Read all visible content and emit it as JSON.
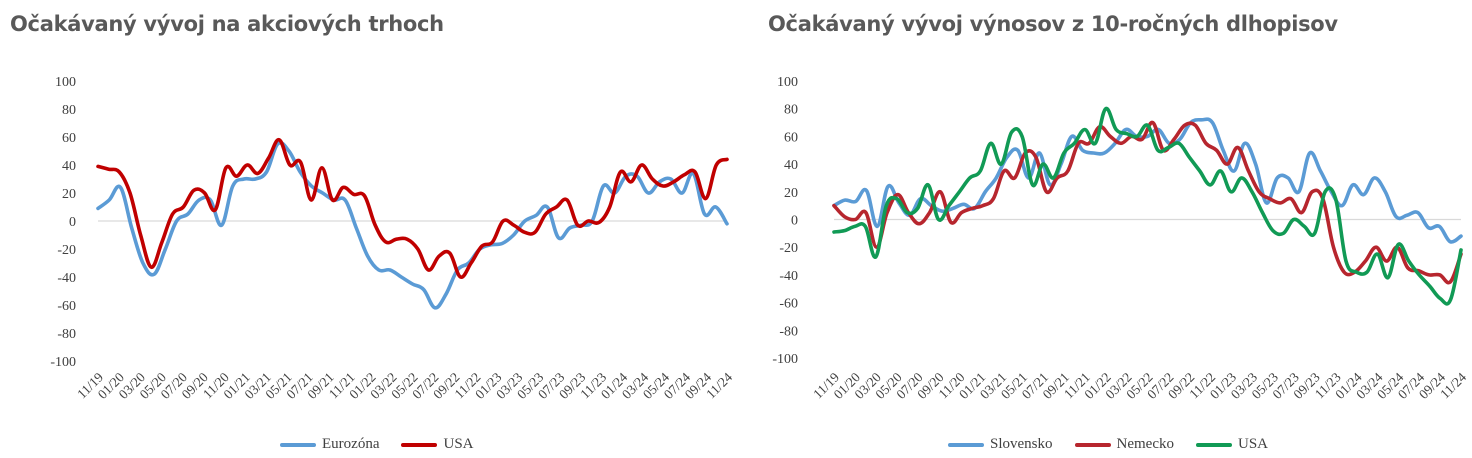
{
  "colors": {
    "eurozona": "#5b9bd5",
    "usa_red": "#c00000",
    "slovensko": "#5b9bd5",
    "nemecko": "#b7262e",
    "usa_green": "#119a55",
    "axis": "#d9d9d9",
    "text": "#404040"
  },
  "chart_data": [
    {
      "type": "line",
      "title": "Očakávaný vývoj na akciových trhoch",
      "ylim": [
        -100,
        100
      ],
      "yticks": [
        "100",
        "80",
        "60",
        "40",
        "20",
        "0",
        "-20",
        "-40",
        "-60",
        "-80",
        "-100"
      ],
      "xticks": [
        "11/19",
        "01/20",
        "03/20",
        "05/20",
        "07/20",
        "09/20",
        "11/20",
        "01/21",
        "03/21",
        "05/21",
        "07/21",
        "09/21",
        "11/21",
        "01/22",
        "03/22",
        "05/22",
        "07/22",
        "09/22",
        "11/22",
        "01/23",
        "03/23",
        "05/23",
        "07/23",
        "09/23",
        "11/23",
        "01/24",
        "03/24",
        "05/24",
        "07/24",
        "09/24",
        "11/24"
      ],
      "legend": "bottom",
      "series": [
        {
          "name": "Eurozóna",
          "values": [
            9,
            15,
            24,
            -5,
            -30,
            -38,
            -20,
            0,
            5,
            15,
            15,
            -3,
            25,
            30,
            30,
            35,
            55,
            50,
            35,
            25,
            20,
            15,
            15,
            -5,
            -25,
            -35,
            -35,
            -40,
            -45,
            -49,
            -62,
            -52,
            -35,
            -30,
            -20,
            -17,
            -16,
            -10,
            0,
            4,
            10,
            -12,
            -5,
            -3,
            0,
            25,
            20,
            32,
            32,
            20,
            28,
            30,
            20,
            34,
            5,
            10,
            -2
          ]
        },
        {
          "name": "USA",
          "values": [
            39,
            37,
            35,
            20,
            -10,
            -33,
            -15,
            5,
            10,
            22,
            20,
            8,
            38,
            32,
            40,
            34,
            45,
            58,
            40,
            42,
            15,
            38,
            15,
            24,
            19,
            18,
            -3,
            -15,
            -13,
            -13,
            -20,
            -35,
            -25,
            -23,
            -40,
            -30,
            -18,
            -15,
            0,
            -3,
            -8,
            -8,
            5,
            10,
            15,
            -3,
            0,
            -1,
            10,
            35,
            28,
            40,
            30,
            25,
            28,
            33,
            35,
            16,
            40,
            44
          ]
        }
      ]
    },
    {
      "type": "line",
      "title": "Očakávaný vývoj výnosov z 10-ročných dlhopisov",
      "ylim": [
        -100,
        100
      ],
      "yticks": [
        "100",
        "80",
        "60",
        "40",
        "20",
        "0",
        "-20",
        "-40",
        "-60",
        "-80",
        "-100"
      ],
      "xticks": [
        "11/19",
        "01/20",
        "03/20",
        "05/20",
        "07/20",
        "09/20",
        "11/20",
        "01/21",
        "03/21",
        "05/21",
        "07/21",
        "09/21",
        "11/21",
        "01/22",
        "03/22",
        "05/22",
        "07/22",
        "09/22",
        "11/22",
        "01/23",
        "03/23",
        "05/23",
        "07/23",
        "09/23",
        "11/23",
        "01/24",
        "03/24",
        "05/24",
        "07/24",
        "09/24",
        "11/24"
      ],
      "legend": "bottom",
      "series": [
        {
          "name": "Slovensko",
          "values": [
            10,
            14,
            13,
            21,
            -5,
            24,
            12,
            3,
            15,
            10,
            6,
            8,
            11,
            8,
            20,
            30,
            45,
            50,
            30,
            48,
            25,
            40,
            60,
            50,
            48,
            48,
            55,
            65,
            60,
            60,
            65,
            55,
            58,
            70,
            72,
            70,
            50,
            35,
            55,
            40,
            12,
            30,
            30,
            20,
            48,
            35,
            20,
            10,
            25,
            18,
            30,
            20,
            2,
            3,
            5,
            -6,
            -5,
            -16,
            -12
          ]
        },
        {
          "name": "Nemecko",
          "values": [
            10,
            2,
            0,
            5,
            -20,
            5,
            18,
            5,
            -3,
            5,
            20,
            -2,
            5,
            8,
            10,
            15,
            35,
            30,
            48,
            45,
            20,
            30,
            35,
            55,
            55,
            67,
            60,
            55,
            60,
            58,
            70,
            50,
            58,
            68,
            68,
            55,
            50,
            40,
            52,
            35,
            20,
            15,
            12,
            15,
            5,
            20,
            15,
            -20,
            -38,
            -38,
            -30,
            -20,
            -30,
            -20,
            -35,
            -37,
            -40,
            -40,
            -45,
            -25
          ]
        },
        {
          "name": "USA",
          "values": [
            -9,
            -8,
            -5,
            -5,
            -27,
            10,
            15,
            5,
            8,
            25,
            0,
            10,
            20,
            30,
            35,
            55,
            40,
            63,
            60,
            25,
            40,
            30,
            48,
            55,
            65,
            55,
            80,
            65,
            62,
            60,
            68,
            50,
            52,
            55,
            45,
            35,
            25,
            35,
            20,
            30,
            20,
            5,
            -8,
            -10,
            0,
            -5,
            -10,
            20,
            15,
            -30,
            -38,
            -38,
            -25,
            -42,
            -18,
            -30,
            -40,
            -48,
            -57,
            -58,
            -22
          ]
        }
      ]
    }
  ]
}
